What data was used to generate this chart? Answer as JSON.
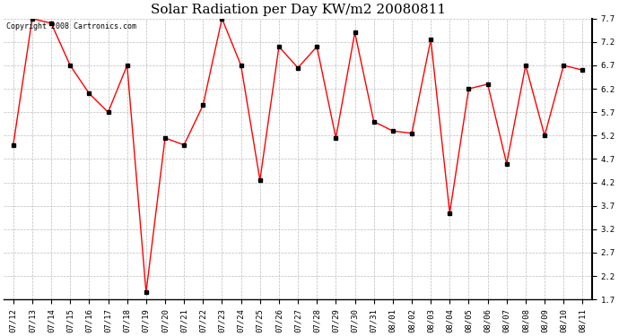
{
  "title": "Solar Radiation per Day KW/m2 20080811",
  "copyright_text": "Copyright 2008 Cartronics.com",
  "dates": [
    "07/12",
    "07/13",
    "07/14",
    "07/15",
    "07/16",
    "07/17",
    "07/18",
    "07/19",
    "07/20",
    "07/21",
    "07/22",
    "07/23",
    "07/24",
    "07/25",
    "07/26",
    "07/27",
    "07/28",
    "07/29",
    "07/30",
    "07/31",
    "08/01",
    "08/02",
    "08/03",
    "08/04",
    "08/05",
    "08/06",
    "08/07",
    "08/08",
    "08/09",
    "08/10",
    "08/11"
  ],
  "values": [
    5.0,
    7.7,
    7.6,
    6.7,
    6.1,
    5.7,
    6.7,
    1.85,
    5.15,
    5.0,
    5.85,
    7.7,
    6.7,
    4.25,
    7.1,
    6.65,
    7.1,
    5.15,
    7.4,
    5.5,
    5.3,
    5.25,
    7.25,
    3.55,
    6.2,
    6.3,
    4.6,
    6.7,
    5.2,
    6.7,
    6.6
  ],
  "line_color": "#ff0000",
  "marker": "s",
  "marker_size": 2.5,
  "marker_color": "#000000",
  "bg_color": "#ffffff",
  "grid_color": "#bbbbbb",
  "ylim": [
    1.7,
    7.7
  ],
  "yticks": [
    1.7,
    2.2,
    2.7,
    3.2,
    3.7,
    4.2,
    4.7,
    5.2,
    5.7,
    6.2,
    6.7,
    7.2,
    7.7
  ],
  "title_fontsize": 11,
  "copyright_fontsize": 6,
  "tick_fontsize": 6.5
}
